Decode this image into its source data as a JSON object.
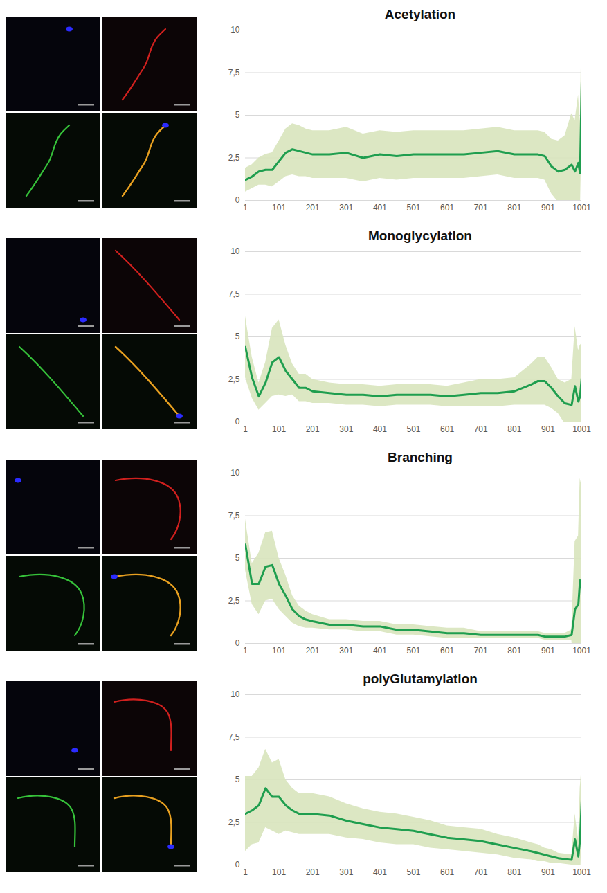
{
  "chart_data": [
    {
      "type": "line",
      "title": "Acetylation",
      "color": "#1f9e4f",
      "grid": true,
      "x": [
        1,
        21,
        41,
        61,
        81,
        101,
        121,
        141,
        161,
        181,
        201,
        251,
        301,
        351,
        401,
        451,
        501,
        551,
        601,
        651,
        701,
        751,
        801,
        851,
        871,
        891,
        911,
        931,
        951,
        971,
        981,
        991,
        996,
        1001
      ],
      "values": [
        1.2,
        1.4,
        1.7,
        1.8,
        1.8,
        2.3,
        2.8,
        3.0,
        2.9,
        2.8,
        2.7,
        2.7,
        2.8,
        2.5,
        2.7,
        2.6,
        2.7,
        2.7,
        2.7,
        2.7,
        2.8,
        2.9,
        2.7,
        2.7,
        2.7,
        2.6,
        2.0,
        1.7,
        1.8,
        2.1,
        1.7,
        2.2,
        1.6,
        7.0
      ],
      "error": [
        0.7,
        0.7,
        0.8,
        0.9,
        1.0,
        1.2,
        1.4,
        1.5,
        1.5,
        1.4,
        1.4,
        1.4,
        1.5,
        1.4,
        1.4,
        1.4,
        1.4,
        1.4,
        1.4,
        1.4,
        1.4,
        1.4,
        1.4,
        1.4,
        1.4,
        1.4,
        1.6,
        1.8,
        2.0,
        3.0,
        3.0,
        4.0,
        3.0,
        3.0
      ],
      "xlim": [
        1,
        1001
      ],
      "xticks": [
        1,
        101,
        201,
        301,
        401,
        501,
        601,
        701,
        801,
        901,
        1001
      ],
      "ylim": [
        0,
        10
      ],
      "yticks": [
        0,
        {
          "value": 2.5,
          "label": "2,5"
        },
        5,
        {
          "value": 7.5,
          "label": "7,5"
        },
        10
      ]
    },
    {
      "type": "line",
      "title": "Monoglycylation",
      "color": "#1f9e4f",
      "grid": true,
      "x": [
        1,
        21,
        41,
        61,
        81,
        101,
        121,
        141,
        161,
        181,
        201,
        251,
        301,
        351,
        401,
        451,
        501,
        551,
        601,
        651,
        701,
        751,
        801,
        851,
        871,
        891,
        911,
        931,
        951,
        971,
        981,
        991,
        996,
        1001
      ],
      "values": [
        4.4,
        2.6,
        1.5,
        2.3,
        3.5,
        3.8,
        3.0,
        2.5,
        2.0,
        2.0,
        1.8,
        1.7,
        1.6,
        1.6,
        1.5,
        1.6,
        1.6,
        1.6,
        1.5,
        1.6,
        1.7,
        1.7,
        1.8,
        2.2,
        2.4,
        2.4,
        2.0,
        1.5,
        1.1,
        1.0,
        2.1,
        1.2,
        1.5,
        2.6
      ],
      "error": [
        1.8,
        1.2,
        0.8,
        1.2,
        2.0,
        2.2,
        1.5,
        0.9,
        0.8,
        0.8,
        0.7,
        0.6,
        0.6,
        0.6,
        0.6,
        0.6,
        0.6,
        0.6,
        0.6,
        0.7,
        0.8,
        0.8,
        0.8,
        1.2,
        1.4,
        1.4,
        1.2,
        1.0,
        1.2,
        1.5,
        3.5,
        3.0,
        3.0,
        2.0
      ],
      "xlim": [
        1,
        1001
      ],
      "xticks": [
        1,
        101,
        201,
        301,
        401,
        501,
        601,
        701,
        801,
        901,
        1001
      ],
      "ylim": [
        0,
        10
      ],
      "yticks": [
        0,
        {
          "value": 2.5,
          "label": "2,5"
        },
        5,
        {
          "value": 7.5,
          "label": "7,5"
        },
        10
      ]
    },
    {
      "type": "line",
      "title": "Branching",
      "color": "#1f9e4f",
      "grid": true,
      "x": [
        1,
        21,
        41,
        61,
        81,
        101,
        121,
        141,
        161,
        181,
        201,
        251,
        301,
        351,
        401,
        451,
        501,
        551,
        601,
        651,
        701,
        751,
        801,
        851,
        871,
        891,
        911,
        931,
        951,
        971,
        981,
        991,
        996,
        1001
      ],
      "values": [
        5.8,
        3.5,
        3.5,
        4.5,
        4.6,
        3.5,
        2.8,
        2.0,
        1.6,
        1.4,
        1.3,
        1.1,
        1.1,
        1.0,
        1.0,
        0.8,
        0.8,
        0.7,
        0.6,
        0.6,
        0.5,
        0.5,
        0.5,
        0.5,
        0.5,
        0.4,
        0.4,
        0.4,
        0.4,
        0.5,
        2.0,
        2.3,
        3.7,
        3.2
      ],
      "error": [
        1.5,
        1.2,
        1.8,
        2.0,
        2.0,
        1.5,
        1.2,
        0.8,
        0.6,
        0.5,
        0.4,
        0.3,
        0.3,
        0.3,
        0.3,
        0.3,
        0.3,
        0.3,
        0.3,
        0.3,
        0.2,
        0.2,
        0.2,
        0.2,
        0.2,
        0.2,
        0.2,
        0.2,
        0.2,
        0.3,
        4.0,
        4.0,
        6.0,
        6.0
      ],
      "xlim": [
        1,
        1001
      ],
      "xticks": [
        1,
        101,
        201,
        301,
        401,
        501,
        601,
        701,
        801,
        901,
        1001
      ],
      "ylim": [
        0,
        10
      ],
      "yticks": [
        0,
        {
          "value": 2.5,
          "label": "2,5"
        },
        5,
        {
          "value": 7.5,
          "label": "7,5"
        },
        10
      ]
    },
    {
      "type": "line",
      "title": "polyGlutamylation",
      "color": "#1f9e4f",
      "grid": true,
      "x": [
        1,
        21,
        41,
        61,
        81,
        101,
        121,
        141,
        161,
        181,
        201,
        251,
        301,
        351,
        401,
        451,
        501,
        551,
        601,
        651,
        701,
        751,
        801,
        851,
        871,
        891,
        911,
        931,
        951,
        971,
        981,
        991,
        996,
        1001
      ],
      "values": [
        3.0,
        3.2,
        3.5,
        4.5,
        4.0,
        4.0,
        3.5,
        3.2,
        3.0,
        3.0,
        3.0,
        2.9,
        2.6,
        2.4,
        2.2,
        2.1,
        2.0,
        1.8,
        1.6,
        1.5,
        1.4,
        1.2,
        1.0,
        0.8,
        0.7,
        0.6,
        0.5,
        0.4,
        0.35,
        0.3,
        1.5,
        0.5,
        1.5,
        3.8
      ],
      "error": [
        2.2,
        2.0,
        2.2,
        2.3,
        2.0,
        2.2,
        1.5,
        1.3,
        1.2,
        1.2,
        1.2,
        1.1,
        1.0,
        0.9,
        0.9,
        0.9,
        0.8,
        0.8,
        0.7,
        0.7,
        0.7,
        0.6,
        0.6,
        0.5,
        0.5,
        0.4,
        0.4,
        0.3,
        0.3,
        0.3,
        1.5,
        1.0,
        3.0,
        2.0
      ],
      "xlim": [
        1,
        1001
      ],
      "xticks": [
        1,
        101,
        201,
        301,
        401,
        501,
        601,
        701,
        801,
        901,
        1001
      ],
      "ylim": [
        0,
        10
      ],
      "yticks": [
        0,
        {
          "value": 2.5,
          "label": "2,5"
        },
        5,
        {
          "value": 7.5,
          "label": "7,5"
        },
        10
      ]
    }
  ]
}
